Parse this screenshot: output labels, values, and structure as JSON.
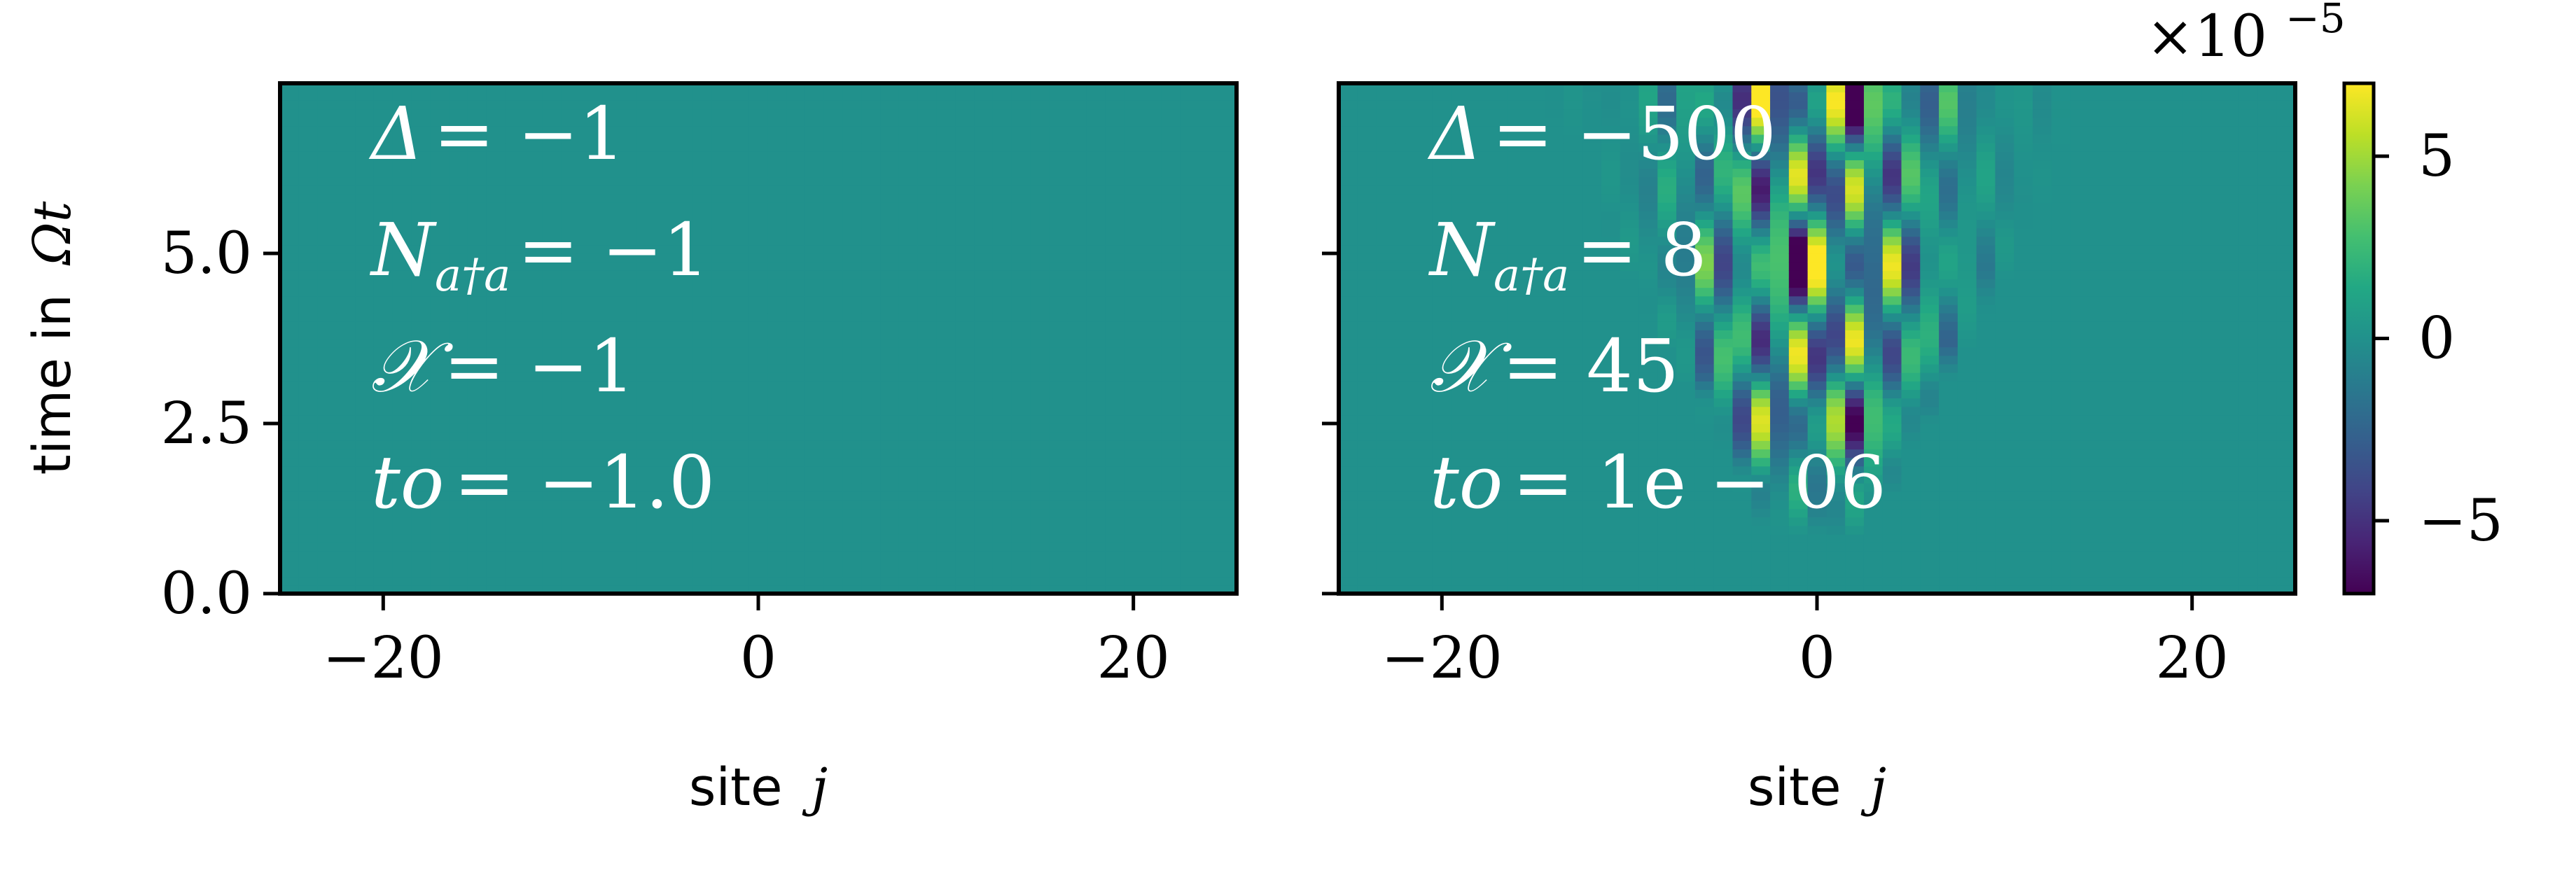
{
  "chart_data": [
    {
      "type": "heatmap",
      "title": "",
      "xlabel_text": "site",
      "xlabel_var": "j",
      "ylabel_text": "time in",
      "ylabel_var": "Ωt",
      "xlim": [
        -25.5,
        25.5
      ],
      "ylim": [
        0,
        7.5
      ],
      "xticks": [
        -20,
        0,
        20
      ],
      "xtick_labels": [
        "−20",
        "0",
        "20"
      ],
      "yticks": [
        0.0,
        2.5,
        5.0
      ],
      "ytick_labels": [
        "0.0",
        "2.5",
        "5.0"
      ],
      "show_ytick_labels": true,
      "value_range": [
        -7e-05,
        7e-05
      ],
      "field": "uniform zero (all sites, all times)",
      "annotations": [
        {
          "lhs": "Δ",
          "rhs": "= −1"
        },
        {
          "lhs": "N",
          "sub": "a†a",
          "rhs": "= −1"
        },
        {
          "lhs": "𝒳",
          "rhs": "= −1"
        },
        {
          "lhs": "to",
          "rhs": "= −1.0"
        }
      ]
    },
    {
      "type": "heatmap",
      "title": "",
      "xlabel_text": "site",
      "xlabel_var": "j",
      "ylabel_text": "",
      "ylabel_var": "",
      "xlim": [
        -25.5,
        25.5
      ],
      "ylim": [
        0,
        7.5
      ],
      "xticks": [
        -20,
        0,
        20
      ],
      "xtick_labels": [
        "−20",
        "0",
        "20"
      ],
      "yticks": [
        0.0,
        2.5,
        5.0
      ],
      "ytick_labels": [],
      "show_ytick_labels": false,
      "value_range": [
        -7e-05,
        7e-05
      ],
      "field": "light-cone spreading from site 0; amplitude up to ~7e-5, alternating sign in space and time",
      "annotations": [
        {
          "lhs": "Δ",
          "rhs": "= −500"
        },
        {
          "lhs": "N",
          "sub": "a†a",
          "rhs": "= 8"
        },
        {
          "lhs": "𝒳",
          "rhs": "= 45"
        },
        {
          "lhs": "to",
          "rhs": "= 1e − 06"
        }
      ]
    }
  ],
  "colorbar": {
    "colormap": "viridis",
    "range": [
      -7e-05,
      7e-05
    ],
    "ticks": [
      -5e-05,
      0,
      5e-05
    ],
    "tick_labels": [
      "−5",
      "0",
      "5"
    ],
    "offset_base": "×10",
    "offset_exp": "−5"
  },
  "colors": {
    "viridis_mid": "#21918c",
    "annotation_text": "#ffffff",
    "axes": "#000000"
  }
}
